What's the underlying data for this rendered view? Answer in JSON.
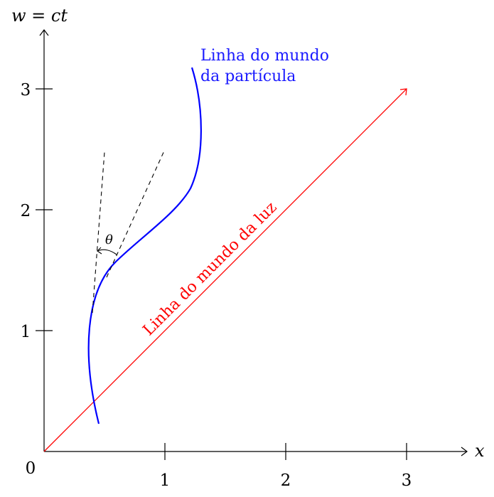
{
  "diagram": {
    "axes": {
      "x_label": "x",
      "y_label": "w = ct",
      "origin_label": "0",
      "x_ticks": [
        {
          "value": 1,
          "label": "1"
        },
        {
          "value": 2,
          "label": "2"
        },
        {
          "value": 3,
          "label": "3"
        }
      ],
      "y_ticks": [
        {
          "value": 1,
          "label": "1"
        },
        {
          "value": 2,
          "label": "2"
        },
        {
          "value": 3,
          "label": "3"
        }
      ]
    },
    "particle_worldline": {
      "label_line1": "Linha do mundo",
      "label_line2": "da partícula",
      "color": "#0000ff"
    },
    "light_worldline": {
      "label": "Linha do mundo da luz",
      "color": "#ff0000",
      "from": [
        0,
        0
      ],
      "to": [
        3,
        3
      ]
    },
    "angle": {
      "label": "θ"
    }
  }
}
